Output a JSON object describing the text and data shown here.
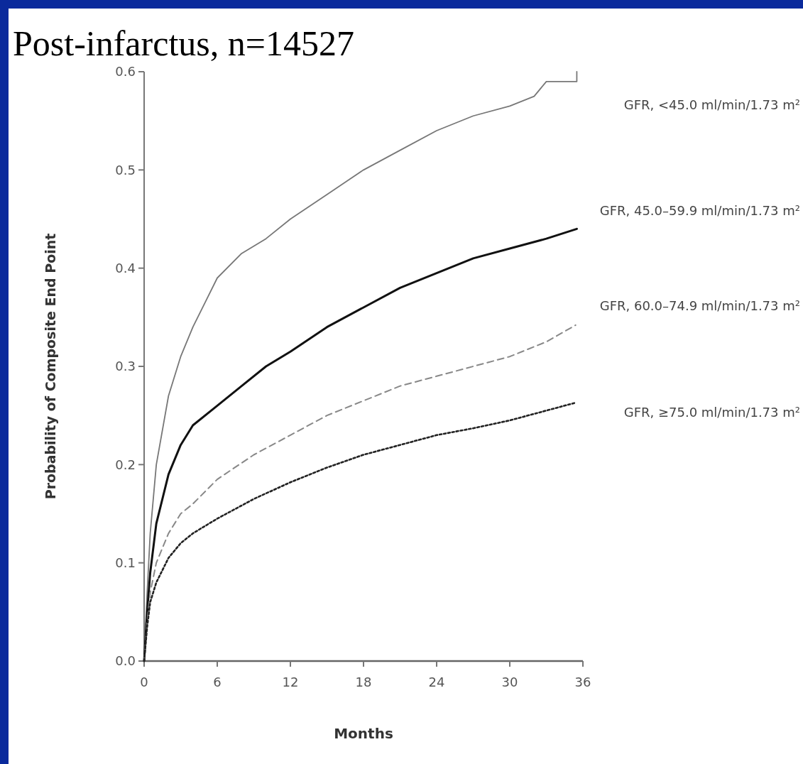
{
  "chart_data": {
    "type": "line",
    "title": "Post-infarctus, n=14527",
    "xlabel": "Months",
    "ylabel": "Probability of Composite End Point",
    "xlim": [
      0,
      36
    ],
    "xticks": [
      0,
      6,
      12,
      18,
      24,
      30,
      36
    ],
    "ylim": [
      0,
      0.6
    ],
    "yticks": [
      {
        "value": 0,
        "label": "0.0"
      },
      0.1,
      0.2,
      0.3,
      0.4,
      0.5,
      0.6
    ],
    "series": [
      {
        "name": "GFR, <45.0 ml/min/1.73 m²",
        "color": "#777777",
        "line_style": "solid",
        "x": [
          0,
          0.25,
          0.5,
          1,
          2,
          3,
          4,
          5,
          6,
          8,
          10,
          12,
          15,
          18,
          21,
          24,
          27,
          30,
          32,
          33,
          35.5,
          35.5
        ],
        "values": [
          0,
          0.07,
          0.13,
          0.2,
          0.27,
          0.31,
          0.34,
          0.365,
          0.39,
          0.415,
          0.43,
          0.45,
          0.475,
          0.5,
          0.52,
          0.54,
          0.555,
          0.565,
          0.575,
          0.59,
          0.59,
          0.6
        ]
      },
      {
        "name": "GFR, 45.0–59.9 ml/min/1.73 m²",
        "color": "#111111",
        "line_style": "solid",
        "x": [
          0,
          0.25,
          0.5,
          1,
          2,
          3,
          4,
          6,
          8,
          10,
          12,
          15,
          18,
          21,
          24,
          27,
          30,
          33,
          35.5
        ],
        "values": [
          0,
          0.05,
          0.09,
          0.14,
          0.19,
          0.22,
          0.24,
          0.26,
          0.28,
          0.3,
          0.315,
          0.34,
          0.36,
          0.38,
          0.395,
          0.41,
          0.42,
          0.43,
          0.44
        ]
      },
      {
        "name": "GFR, 60.0–74.9 ml/min/1.73 m²",
        "color": "#888888",
        "line_style": "dashed",
        "x": [
          0,
          0.25,
          0.5,
          1,
          2,
          3,
          4,
          6,
          9,
          12,
          15,
          18,
          21,
          24,
          27,
          30,
          33,
          35.4
        ],
        "values": [
          0,
          0.04,
          0.07,
          0.1,
          0.13,
          0.15,
          0.16,
          0.185,
          0.21,
          0.23,
          0.25,
          0.265,
          0.28,
          0.29,
          0.3,
          0.31,
          0.325,
          0.342
        ]
      },
      {
        "name": "GFR, ≥75.0 ml/min/1.73 m²",
        "color": "#222222",
        "line_style": "dotted",
        "x": [
          0,
          0.25,
          0.5,
          1,
          2,
          3,
          4,
          6,
          9,
          12,
          15,
          18,
          21,
          24,
          27,
          30,
          33,
          35.4
        ],
        "values": [
          0,
          0.035,
          0.06,
          0.08,
          0.105,
          0.12,
          0.13,
          0.145,
          0.165,
          0.182,
          0.197,
          0.21,
          0.22,
          0.23,
          0.237,
          0.245,
          0.255,
          0.263
        ]
      }
    ]
  }
}
